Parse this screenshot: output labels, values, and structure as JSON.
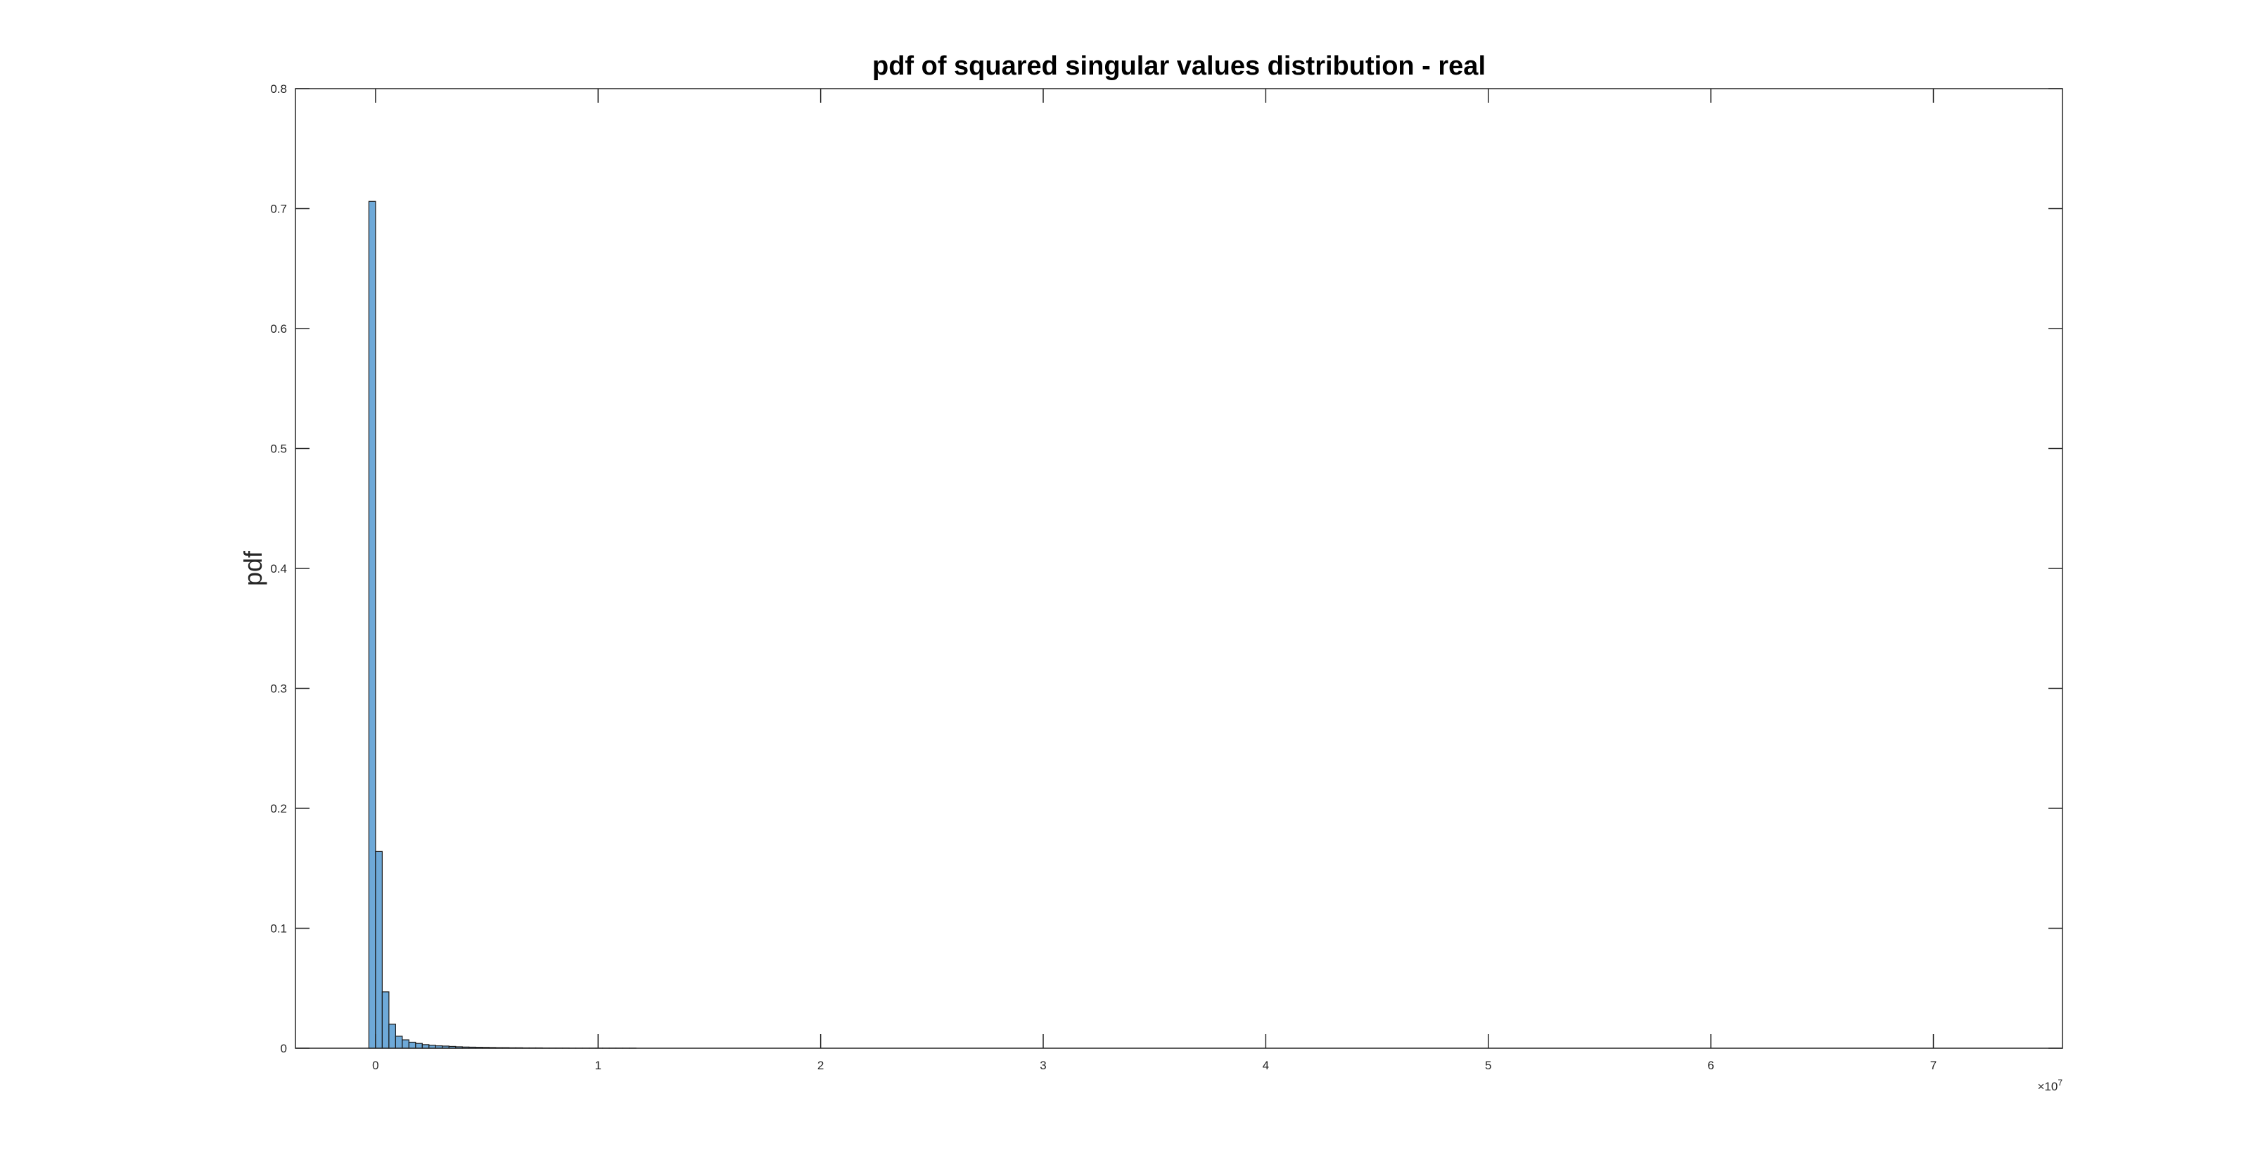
{
  "chart_data": {
    "type": "bar",
    "title": "pdf of squared singular values distribution - real",
    "xlabel": "",
    "ylabel": "pdf",
    "x_exponent_label": "×10",
    "x_exponent_power": "7",
    "x_scale": 10000000,
    "xlim": [
      -3600000,
      75800000
    ],
    "ylim": [
      0,
      0.8
    ],
    "x_ticks": [
      0,
      10000000,
      20000000,
      30000000,
      40000000,
      50000000,
      60000000,
      70000000
    ],
    "x_tick_labels": [
      "0",
      "1",
      "2",
      "3",
      "4",
      "5",
      "6",
      "7"
    ],
    "y_ticks": [
      0,
      0.1,
      0.2,
      0.3,
      0.4,
      0.5,
      0.6,
      0.7,
      0.8
    ],
    "y_tick_labels": [
      "0",
      "0.1",
      "0.2",
      "0.3",
      "0.4",
      "0.5",
      "0.6",
      "0.7",
      "0.8"
    ],
    "bin_width": 300000,
    "bin_start": -300000,
    "values": [
      0.706,
      0.164,
      0.047,
      0.02,
      0.01,
      0.007,
      0.005,
      0.004,
      0.003,
      0.0025,
      0.002,
      0.0018,
      0.0015,
      0.0012,
      0.001,
      0.0009,
      0.0008,
      0.0007,
      0.0006,
      0.0005,
      0.0005,
      0.0004,
      0.0004,
      0.0003,
      0.0003,
      0.0003,
      0.0002,
      0.0002,
      0.0002,
      0.0002,
      0.0001,
      0.0001,
      0.0001,
      0.0001,
      0.0001,
      0.0001,
      0.0001,
      0.0001,
      0.0001,
      0.0001
    ],
    "bar_color": "#6ea9d8",
    "bar_edge_color": "#1a1a1a",
    "axis_color": "#262626",
    "grid": false
  }
}
